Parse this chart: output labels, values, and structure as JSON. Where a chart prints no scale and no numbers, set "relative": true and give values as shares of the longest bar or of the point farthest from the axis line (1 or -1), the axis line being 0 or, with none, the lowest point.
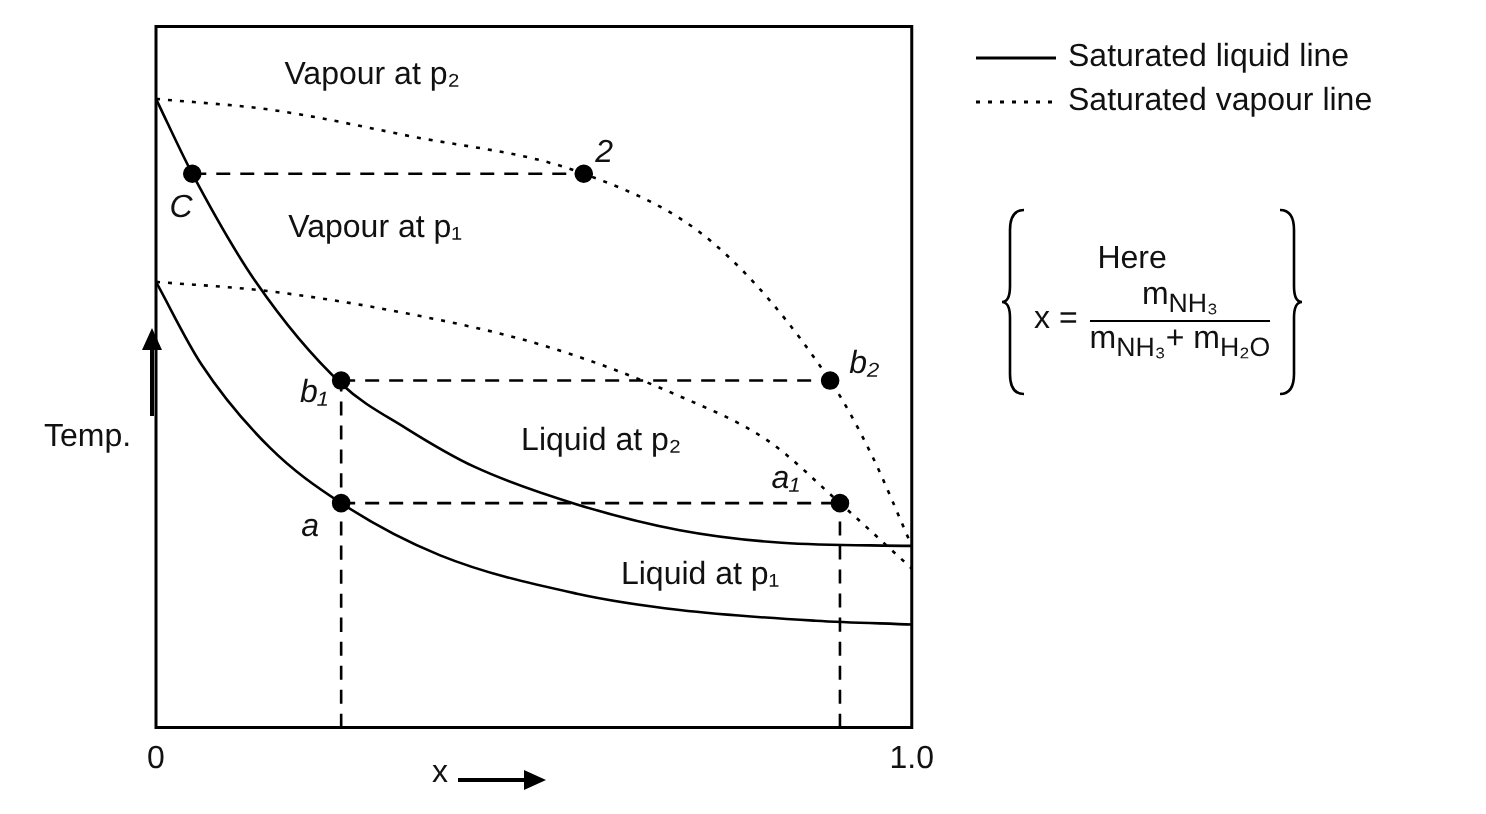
{
  "chart_data": {
    "type": "line",
    "relative": true,
    "xlabel": "x",
    "ylabel": "Temp.",
    "xlim": [
      0,
      1
    ],
    "xticks": [
      0,
      {
        "value": 1,
        "label": "1.0"
      }
    ],
    "legend": "top right",
    "marker": "none",
    "series": [
      {
        "name": "Saturated liquid line",
        "color": "#000000",
        "line_style": "solid",
        "x": [
          0,
          0.048,
          0.132,
          0.245,
          0.331,
          0.421,
          0.557,
          0.693,
          0.828,
          1
        ],
        "values": [
          1,
          0.881,
          0.709,
          0.547,
          0.476,
          0.415,
          0.355,
          0.314,
          0.294,
          0.289
        ]
      },
      {
        "color": "#000000",
        "line_style": "solid",
        "x": [
          0,
          0.06,
          0.15,
          0.245,
          0.376,
          0.557,
          0.693,
          0.873,
          1
        ],
        "values": [
          0.709,
          0.578,
          0.446,
          0.357,
          0.274,
          0.213,
          0.187,
          0.17,
          0.164
        ]
      },
      {
        "name": "Saturated vapour line",
        "color": "#000000",
        "line_style": "dotted",
        "x": [
          0,
          0.15,
          0.331,
          0.566,
          0.738,
          0.892,
          0.946,
          1
        ],
        "values": [
          1,
          0.983,
          0.942,
          0.881,
          0.77,
          0.552,
          0.436,
          0.289
        ]
      },
      {
        "color": "#000000",
        "line_style": "dotted",
        "x": [
          0,
          0.15,
          0.331,
          0.512,
          0.693,
          0.81,
          0.905,
          1
        ],
        "values": [
          0.709,
          0.694,
          0.659,
          0.608,
          0.527,
          0.456,
          0.357,
          0.253
        ]
      },
      {
        "color": "#000000",
        "line_style": "dashed",
        "x": [
          0.048,
          0.566
        ],
        "values": [
          0.881,
          0.881
        ]
      },
      {
        "color": "#000000",
        "line_style": "dashed",
        "x": [
          0.245,
          0.892
        ],
        "values": [
          0.552,
          0.552
        ]
      },
      {
        "color": "#000000",
        "line_style": "dashed",
        "x": [
          0.245,
          0.905
        ],
        "values": [
          0.357,
          0.357
        ]
      },
      {
        "color": "#000000",
        "line_style": "dashed",
        "x": [
          0.245,
          0.245
        ],
        "values": [
          0,
          0.552
        ]
      },
      {
        "color": "#000000",
        "line_style": "dashed",
        "x": [
          0.905,
          0.905
        ],
        "values": [
          0,
          0.357
        ]
      },
      {
        "type": "scatter",
        "marker": "circle",
        "color": "#000000",
        "x": [
          0.048,
          0.566,
          0.245,
          0.892,
          0.245,
          0.905
        ],
        "values": [
          0.881,
          0.881,
          0.552,
          0.552,
          0.357,
          0.357
        ]
      }
    ],
    "annotations": [
      "Here",
      "x =",
      "m$_{NH₃}$",
      "m$_{NH₃}$+ m$_{H₂O}$",
      "Vapour at p₂",
      "Vapour at p₁",
      "Liquid at p₂",
      "Liquid at p₁",
      "C",
      "2",
      "b₁",
      "b₂",
      "a",
      "a₁"
    ]
  }
}
